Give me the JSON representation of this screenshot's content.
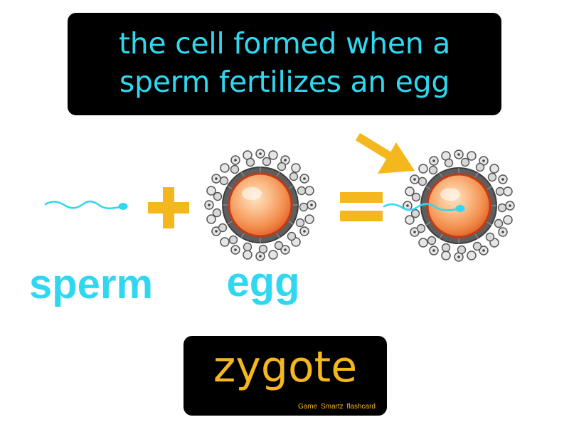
{
  "definition": {
    "line1": "the cell formed when a",
    "line2": "sperm fertilizes an egg"
  },
  "illustration": {
    "sperm_label": "sperm",
    "egg_label": "egg",
    "plus_symbol": "+",
    "equals_symbol": "="
  },
  "term": {
    "word": "zygote",
    "brand": "Game Smartz flashcard"
  },
  "colors": {
    "definition_text": "#2fd8f0",
    "term_text": "#f5b71e",
    "symbols": "#f5b71e",
    "arrow": "#f5b71e",
    "sperm": "#2fd8f0",
    "egg_core": "#f07e3a",
    "egg_ring": "#555555",
    "background": "#ffffff",
    "boxes": "#000000"
  },
  "icons": {
    "sperm": "sperm-icon",
    "egg": "egg-cell-icon",
    "zygote": "zygote-cell-icon",
    "arrow": "arrow-icon"
  }
}
